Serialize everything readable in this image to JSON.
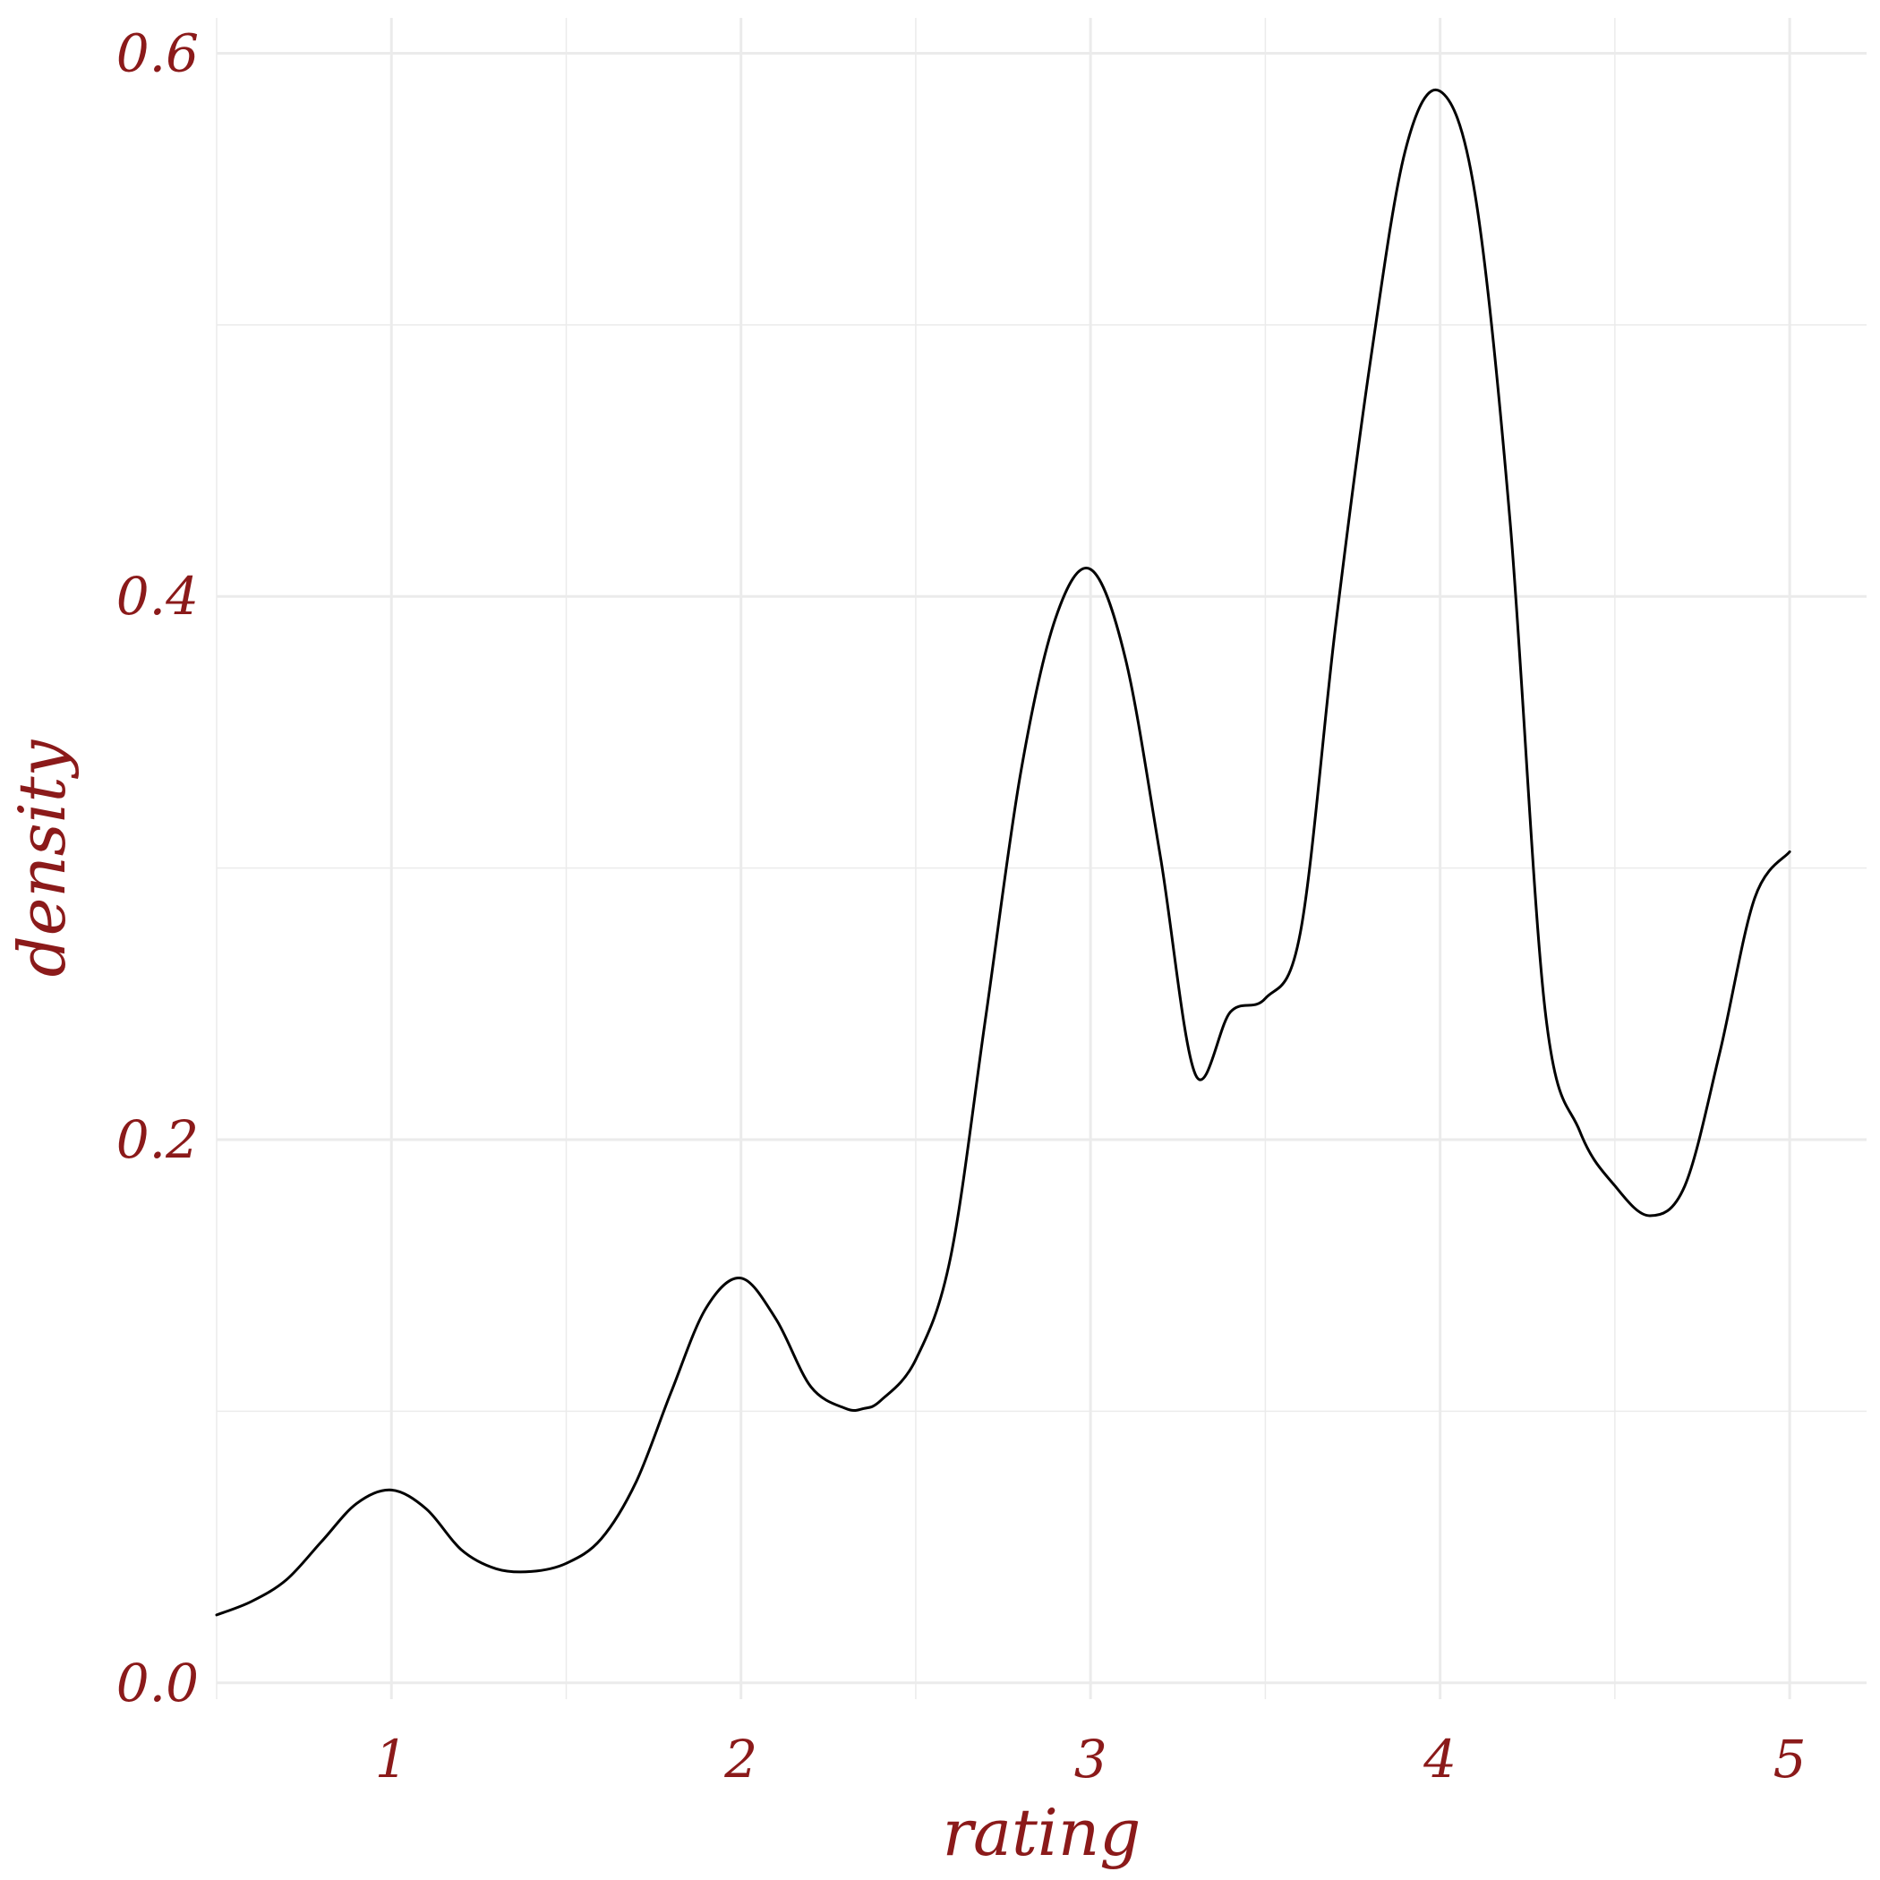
{
  "chart_data": {
    "type": "line",
    "title": "",
    "xlabel": "rating",
    "ylabel": "density",
    "xlim": [
      0.5,
      5.22
    ],
    "ylim": [
      -0.006,
      0.613
    ],
    "x_ticks": [
      1,
      2,
      3,
      4,
      5
    ],
    "x_tick_labels": [
      "1",
      "2",
      "3",
      "4",
      "5"
    ],
    "x_minor_ticks": [
      0.5,
      1.5,
      2.5,
      3.5,
      4.5
    ],
    "y_ticks": [
      0.0,
      0.2,
      0.4,
      0.6
    ],
    "y_tick_labels": [
      "0.0",
      "0.2",
      "0.4",
      "0.6"
    ],
    "y_minor_ticks": [
      0.1,
      0.3,
      0.5
    ],
    "grid": true,
    "line_color": "#000000",
    "text_color": "#8b1a1a",
    "grid_color": "#ebebeb",
    "series": [
      {
        "name": "",
        "x": [
          0.5,
          0.6,
          0.7,
          0.8,
          0.9,
          1.0,
          1.1,
          1.2,
          1.3,
          1.4,
          1.5,
          1.6,
          1.7,
          1.8,
          1.9,
          2.0,
          2.1,
          2.2,
          2.3,
          2.35,
          2.4,
          2.5,
          2.6,
          2.7,
          2.8,
          2.9,
          3.0,
          3.1,
          3.2,
          3.3,
          3.4,
          3.5,
          3.6,
          3.7,
          3.8,
          3.9,
          4.0,
          4.1,
          4.2,
          4.3,
          4.4,
          4.5,
          4.6,
          4.7,
          4.8,
          4.9,
          5.0
        ],
        "y": [
          0.025,
          0.03,
          0.038,
          0.052,
          0.066,
          0.071,
          0.064,
          0.049,
          0.042,
          0.041,
          0.044,
          0.053,
          0.074,
          0.107,
          0.138,
          0.149,
          0.134,
          0.109,
          0.101,
          0.101,
          0.104,
          0.119,
          0.157,
          0.245,
          0.335,
          0.392,
          0.41,
          0.377,
          0.304,
          0.224,
          0.247,
          0.252,
          0.276,
          0.388,
          0.486,
          0.564,
          0.586,
          0.548,
          0.428,
          0.248,
          0.203,
          0.183,
          0.172,
          0.183,
          0.232,
          0.289,
          0.306
        ]
      }
    ]
  }
}
